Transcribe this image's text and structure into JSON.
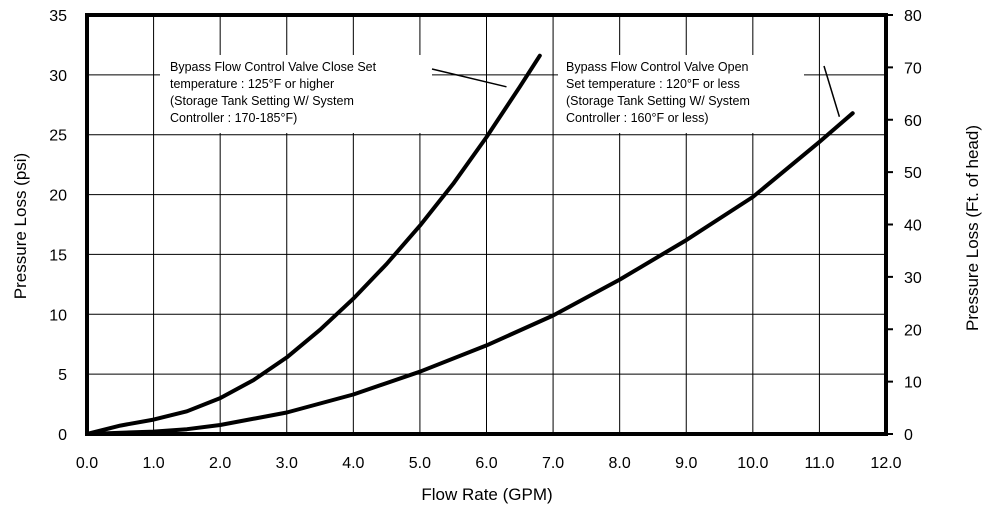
{
  "chart_data": {
    "type": "line",
    "xlabel": "Flow Rate (GPM)",
    "ylabel": "Pressure Loss (psi)",
    "y2label": "Pressure Loss (Ft. of head)",
    "xlim": [
      0,
      12
    ],
    "ylim": [
      0,
      35
    ],
    "y2lim": [
      0,
      80
    ],
    "xticks": [
      "0.0",
      "1.0",
      "2.0",
      "3.0",
      "4.0",
      "5.0",
      "6.0",
      "7.0",
      "8.0",
      "9.0",
      "10.0",
      "11.0",
      "12.0"
    ],
    "yticks": [
      "0",
      "5",
      "10",
      "15",
      "20",
      "25",
      "30",
      "35"
    ],
    "y2ticks": [
      "0",
      "10",
      "20",
      "30",
      "40",
      "50",
      "60",
      "70",
      "80"
    ],
    "grid": true,
    "series": [
      {
        "name": "Bypass Flow Control Valve Close",
        "x": [
          0,
          0.5,
          1.0,
          1.5,
          2.0,
          2.5,
          3.0,
          3.5,
          4.0,
          4.5,
          5.0,
          5.5,
          6.0,
          6.5,
          6.8
        ],
        "y": [
          0,
          0.7,
          1.2,
          1.9,
          3.0,
          4.5,
          6.4,
          8.7,
          11.3,
          14.2,
          17.4,
          20.9,
          24.8,
          29.0,
          31.6
        ]
      },
      {
        "name": "Bypass Flow Control Valve Open",
        "x": [
          0,
          1.0,
          1.5,
          2.0,
          3.0,
          4.0,
          5.0,
          6.0,
          7.0,
          8.0,
          9.0,
          10.0,
          11.0,
          11.5
        ],
        "y": [
          0,
          0.2,
          0.4,
          0.75,
          1.8,
          3.3,
          5.2,
          7.4,
          9.9,
          12.9,
          16.2,
          19.8,
          24.4,
          26.8
        ]
      }
    ],
    "annotations": [
      {
        "lines": [
          "Bypass Flow Control Valve Close Set",
          "temperature : 125°F or higher",
          "(Storage Tank Setting W/ System",
          "Controller : 170-185°F)"
        ],
        "points_to": {
          "x": 6.3,
          "y": 29.0
        }
      },
      {
        "lines": [
          "Bypass Flow Control Valve Open",
          "Set temperature : 120°F or less",
          "(Storage Tank Setting W/ System",
          "Controller : 160°F or less)"
        ],
        "points_to": {
          "x": 11.3,
          "y": 26.5
        }
      }
    ]
  }
}
